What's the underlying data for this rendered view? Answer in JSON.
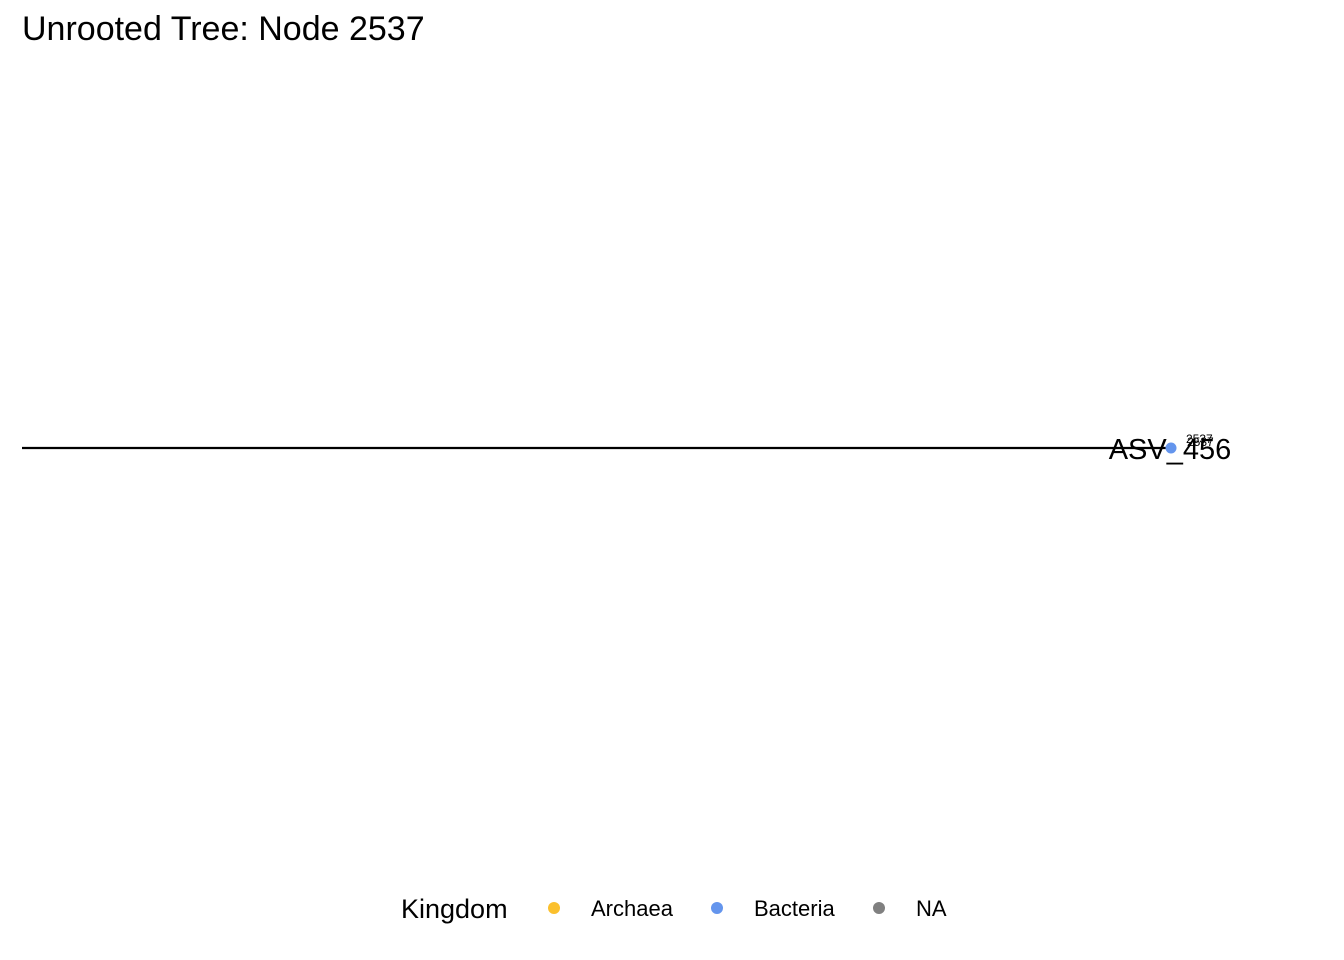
{
  "chart_data": {
    "type": "tree",
    "title": "Unrooted Tree: Node 2537",
    "nodes": [
      {
        "node_label": "2537",
        "tip_label": "ASV_456",
        "kingdom": "Bacteria"
      },
      {
        "node_label": "2537"
      }
    ],
    "legend": {
      "title": "Kingdom",
      "placement": "bottom",
      "entries": [
        {
          "label": "Archaea",
          "color": "#FBC02D"
        },
        {
          "label": "Bacteria",
          "color": "#6495ED"
        },
        {
          "label": "NA",
          "color": "#808080"
        }
      ]
    },
    "grid": false
  }
}
